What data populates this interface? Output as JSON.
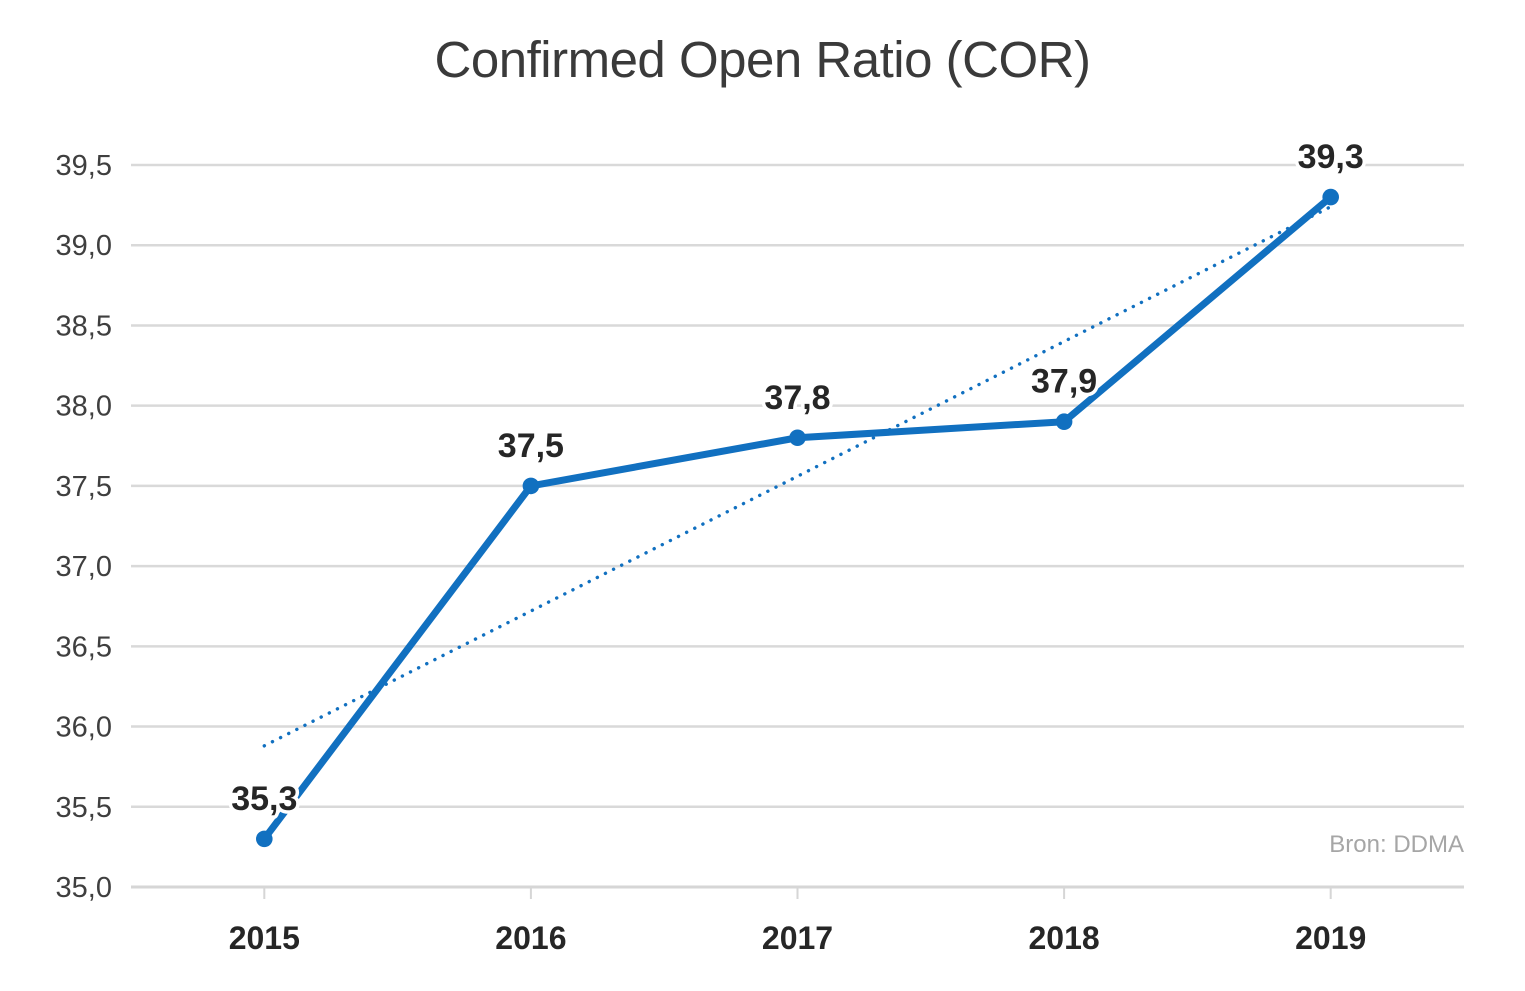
{
  "chart_data": {
    "type": "line",
    "title": "Confirmed Open Ratio (COR)",
    "source": "Bron: DDMA",
    "categories": [
      "2015",
      "2016",
      "2017",
      "2018",
      "2019"
    ],
    "series": [
      {
        "name": "Confirmed Open Ratio",
        "values": [
          35.3,
          37.5,
          37.8,
          37.9,
          39.3
        ],
        "labels": [
          "35,3",
          "37,5",
          "37,8",
          "37,9",
          "39,3"
        ],
        "color": "#1170c0"
      }
    ],
    "trendline": {
      "style": "dotted",
      "start_value": 35.88,
      "end_value": 39.24,
      "color": "#1170c0"
    },
    "ylim": [
      35.0,
      39.5
    ],
    "ytick_step": 0.5,
    "ytick_labels": [
      "35,0",
      "35,5",
      "36,0",
      "36,5",
      "37,0",
      "37,5",
      "38,0",
      "38,5",
      "39,0",
      "39,5"
    ],
    "xlabel": "",
    "ylabel": "",
    "grid": true,
    "legend": false,
    "decimal_separator": ","
  },
  "style": {
    "accent_color": "#1170c0",
    "grid_color": "#d9d9d9",
    "axis_color": "#d6d6d6",
    "title_color": "#3a3a3a",
    "tick_label_color": "#3f3f3f",
    "data_label_color": "#262626",
    "source_color": "#a6a6a6",
    "background": "#ffffff"
  }
}
